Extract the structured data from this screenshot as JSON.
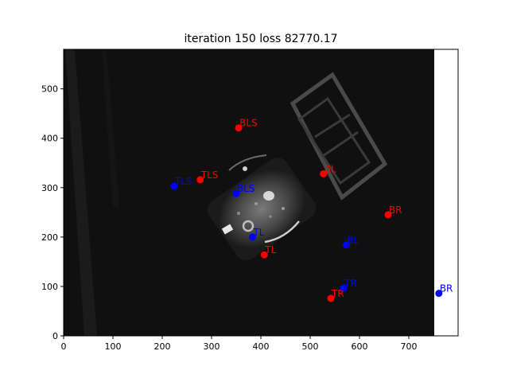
{
  "chart_data": {
    "type": "scatter",
    "title": "iteration 150 loss 82770.17",
    "xlabel": "",
    "ylabel": "",
    "xlim": [
      0,
      800
    ],
    "ylim": [
      580,
      0
    ],
    "image_extent": [
      0,
      755,
      0,
      580
    ],
    "x_ticks": [
      0,
      100,
      200,
      300,
      400,
      500,
      600,
      700
    ],
    "y_ticks": [
      0,
      100,
      200,
      300,
      400,
      500
    ],
    "grid": false,
    "series": [
      {
        "color": "#ff0000",
        "points": [
          {
            "label": "TR",
            "x": 542,
            "y": 76
          },
          {
            "label": "TL",
            "x": 407,
            "y": 164
          },
          {
            "label": "BR",
            "x": 658,
            "y": 245
          },
          {
            "label": "TLS",
            "x": 277,
            "y": 316
          },
          {
            "label": "BL",
            "x": 527,
            "y": 328
          },
          {
            "label": "BLS",
            "x": 355,
            "y": 421
          }
        ]
      },
      {
        "color": "#0000ff",
        "points": [
          {
            "label": "BR",
            "x": 761,
            "y": 86
          },
          {
            "label": "TR",
            "x": 568,
            "y": 97
          },
          {
            "label": "BL",
            "x": 573,
            "y": 184
          },
          {
            "label": "TL",
            "x": 383,
            "y": 200
          },
          {
            "label": "BLS",
            "x": 350,
            "y": 288
          },
          {
            "label": "TLS",
            "x": 224,
            "y": 303
          }
        ]
      }
    ]
  }
}
